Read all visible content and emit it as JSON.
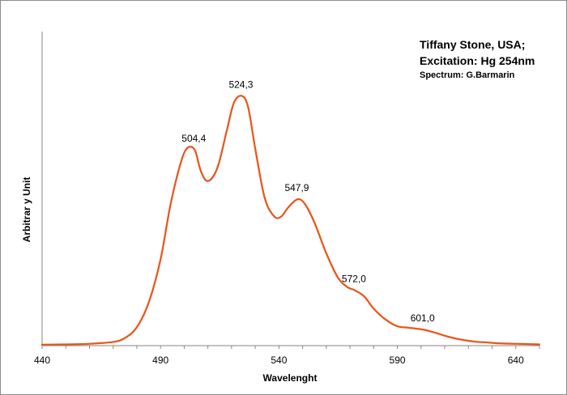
{
  "chart_data": {
    "type": "line",
    "title_lines": [
      "Tiffany Stone, USA;",
      "Excitation: Hg 254nm"
    ],
    "subtitle": "Spectrum: G.Barmarin",
    "xlabel": "Wavelenght",
    "ylabel": "Arbitrar y Unit",
    "xlim": [
      440,
      650
    ],
    "ylim": [
      0,
      1
    ],
    "x_ticks": [
      "440",
      "490",
      "540",
      "590",
      "640"
    ],
    "y_ticks": [],
    "grid": false,
    "legend": "none",
    "series": [
      {
        "color": "#E8561C",
        "x": [
          440,
          450,
          460,
          470,
          475,
          480,
          485,
          490,
          494,
          498,
          501,
          504.4,
          507,
          510,
          514,
          518,
          521,
          524.3,
          527,
          530,
          534,
          538,
          541,
          544,
          547.9,
          551,
          555,
          560,
          565,
          569,
          572,
          576,
          580,
          585,
          590,
          595,
          601,
          606,
          612,
          618,
          624,
          627,
          632,
          640,
          650
        ],
        "y": [
          0.003,
          0.004,
          0.006,
          0.012,
          0.025,
          0.06,
          0.14,
          0.28,
          0.45,
          0.58,
          0.64,
          0.637,
          0.568,
          0.535,
          0.578,
          0.7,
          0.79,
          0.812,
          0.775,
          0.64,
          0.48,
          0.42,
          0.42,
          0.45,
          0.476,
          0.46,
          0.4,
          0.3,
          0.22,
          0.19,
          0.18,
          0.16,
          0.12,
          0.085,
          0.063,
          0.058,
          0.052,
          0.042,
          0.028,
          0.018,
          0.012,
          0.011,
          0.008,
          0.006,
          0.004
        ]
      }
    ],
    "peak_labels": [
      {
        "x": 504.4,
        "y": 0.637,
        "text": "504,4"
      },
      {
        "x": 524.3,
        "y": 0.812,
        "text": "524,3"
      },
      {
        "x": 547.9,
        "y": 0.476,
        "text": "547,9"
      },
      {
        "x": 572.0,
        "y": 0.18,
        "text": "572,0"
      },
      {
        "x": 601.0,
        "y": 0.052,
        "text": "601,0"
      }
    ]
  }
}
